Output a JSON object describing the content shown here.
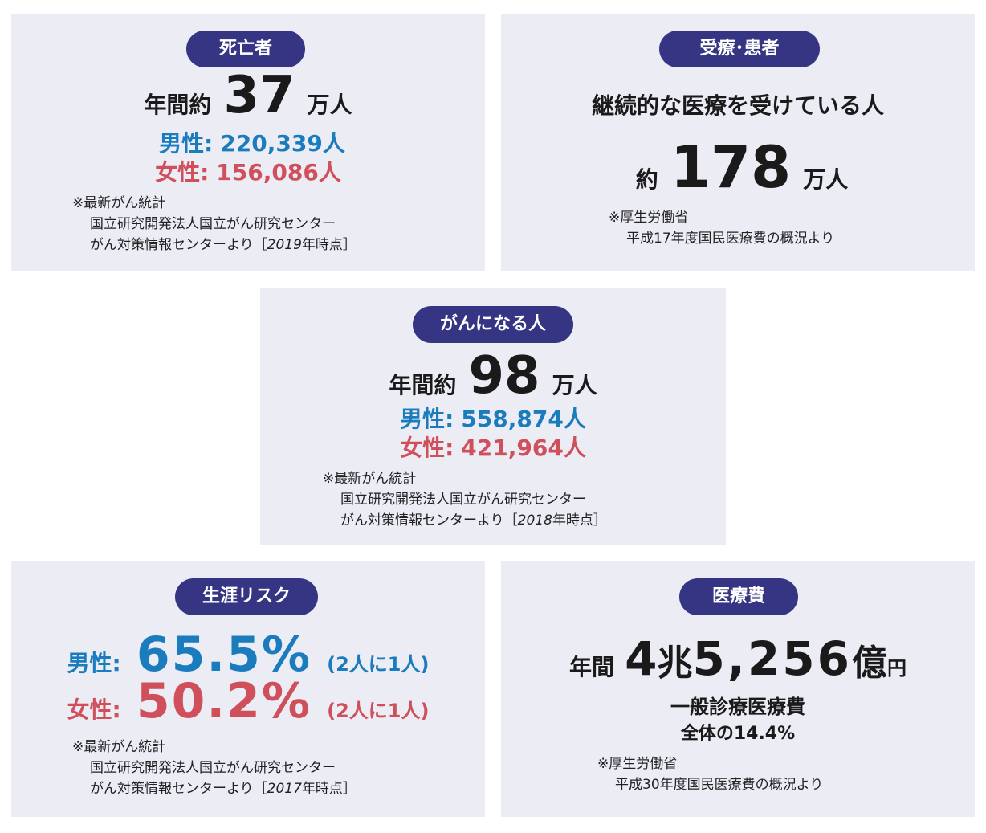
{
  "deaths": {
    "badge": "死亡者",
    "prefix": "年間約",
    "number": "37",
    "unit": "万人",
    "male_label": "男性:",
    "male_value": "220,339人",
    "female_label": "女性:",
    "female_value": "156,086人",
    "note_mark": "※最新がん統計",
    "note_line2": "国立研究開発法人国立がん研究センター",
    "note_line3_prefix": "がん対策情報センターより［",
    "note_year": "2019",
    "note_line3_suffix": "年時点］"
  },
  "patients": {
    "badge": "受療･患者",
    "headline": "継続的な医療を受けている人",
    "prefix": "約",
    "number": "178",
    "unit": "万人",
    "note_mark": "※厚生労働省",
    "note_line2": "平成17年度国民医療費の概況より"
  },
  "incidence": {
    "badge": "がんになる人",
    "prefix": "年間約",
    "number": "98",
    "unit": "万人",
    "male_label": "男性:",
    "male_value": "558,874人",
    "female_label": "女性:",
    "female_value": "421,964人",
    "note_mark": "※最新がん統計",
    "note_line2": "国立研究開発法人国立がん研究センター",
    "note_line3_prefix": "がん対策情報センターより［",
    "note_year": "2018",
    "note_line3_suffix": "年時点］"
  },
  "lifetime": {
    "badge": "生涯リスク",
    "male_label": "男性:",
    "male_value": "65.5%",
    "male_ratio": "(2人に1人)",
    "female_label": "女性:",
    "female_value": "50.2%",
    "female_ratio": "(2人に1人)",
    "note_mark": "※最新がん統計",
    "note_line2": "国立研究開発法人国立がん研究センター",
    "note_line3_prefix": "がん対策情報センターより［",
    "note_year": "2017",
    "note_line3_suffix": "年時点］"
  },
  "cost": {
    "badge": "医療費",
    "prefix": "年間",
    "number_a": "4",
    "unit_a": "兆",
    "number_b": "5,256",
    "unit_b": "億",
    "unit_c": "円",
    "sub1": "一般診療医療費",
    "sub2": "全体の14.4%",
    "note_mark": "※厚生労働省",
    "note_line2": "平成30年度国民医療費の概況より"
  },
  "colors": {
    "badge_bg": "#353583",
    "card_bg": "#ececf5",
    "male": "#1a7bbd",
    "female": "#cf4f5a"
  }
}
